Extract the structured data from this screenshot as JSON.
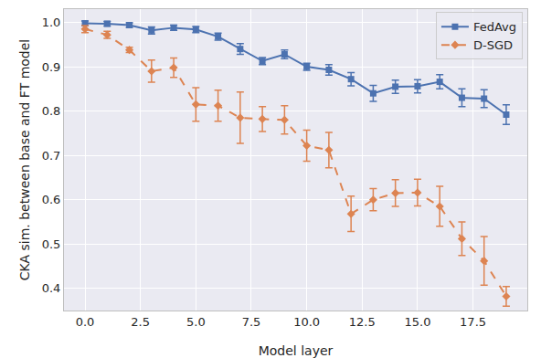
{
  "chart_data": {
    "type": "line",
    "x_label": "Model layer",
    "y_label": "CKA sim. between base and FT model",
    "x": [
      0,
      1,
      2,
      3,
      4,
      5,
      6,
      7,
      8,
      9,
      10,
      11,
      12,
      13,
      14,
      15,
      16,
      17,
      18,
      19
    ],
    "series": [
      {
        "name": "FedAvg",
        "color": "#4c72b0",
        "marker": "square",
        "line_style": "solid",
        "values": [
          0.998,
          0.997,
          0.994,
          0.982,
          0.988,
          0.984,
          0.968,
          0.94,
          0.913,
          0.928,
          0.9,
          0.893,
          0.872,
          0.84,
          0.855,
          0.856,
          0.866,
          0.83,
          0.828,
          0.792
        ],
        "error": [
          0.005,
          0.005,
          0.005,
          0.008,
          0.006,
          0.007,
          0.008,
          0.012,
          0.008,
          0.01,
          0.008,
          0.012,
          0.015,
          0.018,
          0.015,
          0.015,
          0.016,
          0.02,
          0.02,
          0.022
        ]
      },
      {
        "name": "D-SGD",
        "color": "#dd8452",
        "marker": "diamond",
        "line_style": "dashed",
        "values": [
          0.985,
          0.972,
          0.938,
          0.89,
          0.898,
          0.815,
          0.812,
          0.785,
          0.782,
          0.78,
          0.722,
          0.712,
          0.568,
          0.6,
          0.615,
          0.616,
          0.585,
          0.512,
          0.462,
          0.382
        ],
        "error": [
          0.008,
          0.008,
          0.006,
          0.025,
          0.022,
          0.038,
          0.035,
          0.058,
          0.028,
          0.032,
          0.035,
          0.04,
          0.04,
          0.025,
          0.03,
          0.03,
          0.045,
          0.038,
          0.055,
          0.022
        ]
      }
    ],
    "xlim": [
      -0.95,
      19.95
    ],
    "xticks": [
      {
        "value": 0,
        "label": "0.0"
      },
      2.5,
      {
        "value": 5,
        "label": "5.0"
      },
      7.5,
      {
        "value": 10,
        "label": "10.0"
      },
      12.5,
      {
        "value": 15,
        "label": "15.0"
      },
      17.5
    ],
    "ylim": [
      0.35,
      1.03
    ],
    "yticks": [
      0.4,
      0.5,
      0.6,
      0.7,
      0.8,
      0.9,
      {
        "value": 1,
        "label": "1.0"
      }
    ],
    "grid": true,
    "legend": "top-right"
  }
}
